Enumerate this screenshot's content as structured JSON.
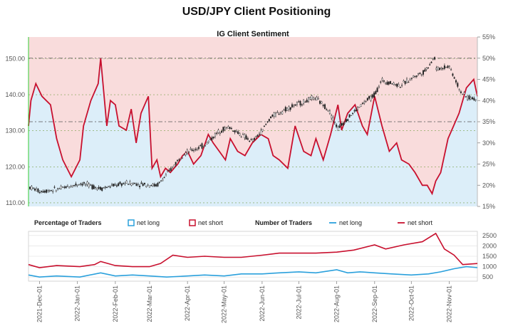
{
  "title": "USD/JPY Client Positioning",
  "colors": {
    "short_zone": "#f9dcdc",
    "long_zone": "#dceef9",
    "net_short": "#c8102e",
    "net_long": "#2aa0dc",
    "price": "#222222",
    "grid": "#7aa04a",
    "axis_green": "#33cc33"
  },
  "chart_data": [
    {
      "type": "line",
      "title": "IG Client Sentiment",
      "x_range": [
        "2021-11-22",
        "2022-11-24"
      ],
      "left_axis": {
        "ticks": [
          "110.00",
          "120.00",
          "130.00",
          "140.00",
          "150.00"
        ],
        "ylim": [
          109,
          156
        ]
      },
      "right_axis": {
        "ticks": [
          "15%",
          "20%",
          "25%",
          "30%",
          "35%",
          "40%",
          "45%",
          "50%",
          "55%"
        ],
        "ylim": [
          15,
          55
        ]
      },
      "price_series": {
        "x": [
          "2021-11-22",
          "2021-12-01",
          "2021-12-15",
          "2022-01-04",
          "2022-01-20",
          "2022-02-10",
          "2022-03-01",
          "2022-03-07",
          "2022-03-15",
          "2022-03-28",
          "2022-04-15",
          "2022-04-28",
          "2022-05-05",
          "2022-05-12",
          "2022-05-24",
          "2022-06-01",
          "2022-06-08",
          "2022-06-15",
          "2022-06-22",
          "2022-07-14",
          "2022-07-25",
          "2022-08-02",
          "2022-08-10",
          "2022-08-22",
          "2022-09-01",
          "2022-09-07",
          "2022-09-22",
          "2022-10-03",
          "2022-10-12",
          "2022-10-20",
          "2022-10-21",
          "2022-11-01",
          "2022-11-10",
          "2022-11-14",
          "2022-11-24"
        ],
        "values": [
          114.5,
          113.2,
          113.7,
          115.4,
          114.0,
          115.5,
          115.0,
          114.8,
          117.8,
          123.5,
          126.0,
          130.2,
          131.0,
          129.5,
          127.0,
          130.0,
          133.8,
          135.0,
          136.3,
          139.2,
          136.0,
          130.6,
          133.5,
          137.4,
          140.0,
          144.0,
          142.5,
          145.0,
          146.5,
          150.5,
          147.0,
          148.0,
          141.0,
          139.5,
          138.5
        ]
      },
      "net_long_pct": {
        "x": [
          "2021-11-22",
          "2021-11-24",
          "2021-11-28",
          "2021-12-03",
          "2021-12-10",
          "2021-12-15",
          "2021-12-20",
          "2021-12-27",
          "2022-01-03",
          "2022-01-06",
          "2022-01-12",
          "2022-01-18",
          "2022-01-20",
          "2022-01-25",
          "2022-01-28",
          "2022-02-01",
          "2022-02-04",
          "2022-02-10",
          "2022-02-14",
          "2022-02-18",
          "2022-02-22",
          "2022-02-28",
          "2022-03-03",
          "2022-03-07",
          "2022-03-10",
          "2022-03-14",
          "2022-03-18",
          "2022-03-24",
          "2022-03-28",
          "2022-04-01",
          "2022-04-06",
          "2022-04-12",
          "2022-04-18",
          "2022-04-22",
          "2022-04-27",
          "2022-05-02",
          "2022-05-06",
          "2022-05-12",
          "2022-05-18",
          "2022-05-24",
          "2022-05-31",
          "2022-06-06",
          "2022-06-10",
          "2022-06-15",
          "2022-06-22",
          "2022-06-28",
          "2022-07-05",
          "2022-07-11",
          "2022-07-15",
          "2022-07-21",
          "2022-07-27",
          "2022-08-02",
          "2022-08-05",
          "2022-08-10",
          "2022-08-16",
          "2022-08-22",
          "2022-08-26",
          "2022-09-01",
          "2022-09-07",
          "2022-09-13",
          "2022-09-19",
          "2022-09-23",
          "2022-09-29",
          "2022-10-04",
          "2022-10-10",
          "2022-10-14",
          "2022-10-18",
          "2022-10-21",
          "2022-10-25",
          "2022-10-31",
          "2022-11-03",
          "2022-11-09",
          "2022-11-15",
          "2022-11-21",
          "2022-11-24"
        ],
        "values": [
          34,
          40,
          44,
          41,
          39,
          31,
          26,
          22,
          26,
          34,
          40,
          44,
          50,
          34,
          40,
          39,
          34,
          33,
          38,
          30,
          37,
          41,
          24,
          26,
          22,
          24,
          23,
          25,
          27,
          28,
          25,
          27,
          32,
          30,
          28,
          26,
          31,
          28,
          27,
          30,
          32,
          31,
          27,
          26,
          24,
          34,
          28,
          27,
          31,
          26,
          32,
          39,
          33,
          37,
          39,
          34,
          32,
          41,
          34,
          28,
          30,
          26,
          25,
          23,
          20,
          20,
          18,
          21,
          23,
          31,
          33,
          37,
          43,
          45,
          41
        ]
      }
    },
    {
      "type": "line",
      "title": "Number of Traders",
      "legend": [
        {
          "section": "Percentage of Traders",
          "items": [
            "net long",
            "net short"
          ]
        },
        {
          "section": "Number of Traders",
          "items": [
            "net long",
            "net short"
          ]
        }
      ],
      "x_ticks": [
        "2021-Dec-01",
        "2022-Jan-01",
        "2022-Feb-01",
        "2022-Mar-01",
        "2022-Apr-01",
        "2022-May-01",
        "2022-Jun-01",
        "2022-Jul-01",
        "2022-Aug-01",
        "2022-Sep-01",
        "2022-Oct-01",
        "2022-Nov-01"
      ],
      "y_ticks": [
        "500",
        "1000",
        "1500",
        "2000",
        "2500"
      ],
      "ylim": [
        300,
        2700
      ],
      "net_short": {
        "x": [
          "2021-11-22",
          "2021-12-01",
          "2021-12-15",
          "2022-01-03",
          "2022-01-15",
          "2022-01-20",
          "2022-02-01",
          "2022-02-15",
          "2022-03-01",
          "2022-03-10",
          "2022-03-20",
          "2022-04-01",
          "2022-04-15",
          "2022-05-01",
          "2022-05-15",
          "2022-06-01",
          "2022-06-15",
          "2022-07-01",
          "2022-07-15",
          "2022-08-01",
          "2022-08-15",
          "2022-09-01",
          "2022-09-10",
          "2022-09-25",
          "2022-10-10",
          "2022-10-21",
          "2022-10-28",
          "2022-11-05",
          "2022-11-12",
          "2022-11-24"
        ],
        "values": [
          1100,
          950,
          1050,
          1000,
          1100,
          1250,
          1050,
          1000,
          1000,
          1150,
          1550,
          1450,
          1500,
          1450,
          1450,
          1550,
          1650,
          1650,
          1650,
          1700,
          1800,
          2050,
          1850,
          2050,
          2200,
          2600,
          1850,
          1550,
          1100,
          1150
        ]
      },
      "net_long": {
        "x": [
          "2021-11-22",
          "2021-12-01",
          "2021-12-15",
          "2022-01-03",
          "2022-01-20",
          "2022-02-01",
          "2022-02-15",
          "2022-03-01",
          "2022-03-15",
          "2022-04-01",
          "2022-04-15",
          "2022-05-01",
          "2022-05-15",
          "2022-06-01",
          "2022-06-15",
          "2022-07-01",
          "2022-07-15",
          "2022-08-01",
          "2022-08-10",
          "2022-08-20",
          "2022-09-01",
          "2022-09-15",
          "2022-10-01",
          "2022-10-15",
          "2022-10-25",
          "2022-11-05",
          "2022-11-15",
          "2022-11-24"
        ],
        "values": [
          600,
          500,
          550,
          500,
          700,
          550,
          600,
          550,
          500,
          550,
          600,
          550,
          650,
          650,
          700,
          750,
          700,
          850,
          700,
          750,
          700,
          650,
          600,
          650,
          750,
          900,
          1000,
          950
        ]
      }
    }
  ]
}
